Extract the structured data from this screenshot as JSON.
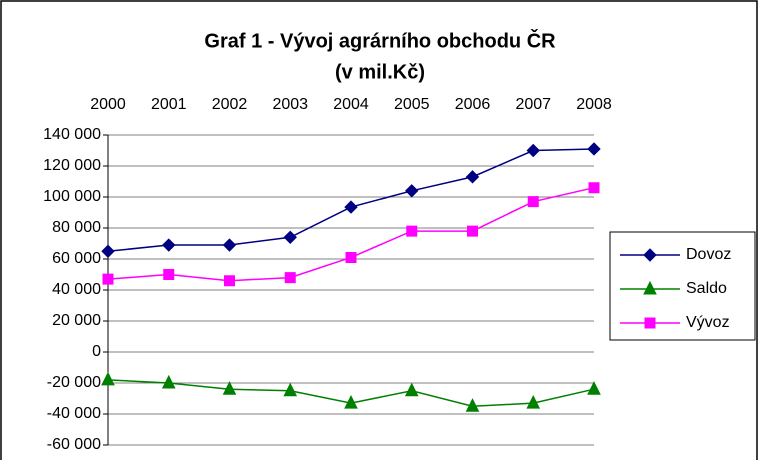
{
  "chart_data": {
    "type": "line",
    "title": "Graf 1 - Vývoj agrárního obchodu ČR",
    "subtitle": "(v mil.Kč)",
    "categories": [
      "2000",
      "2001",
      "2002",
      "2003",
      "2004",
      "2005",
      "2006",
      "2007",
      "2008"
    ],
    "series": [
      {
        "name": "Dovoz",
        "color": "#000080",
        "marker": "diamond",
        "values": [
          65000,
          69000,
          69000,
          74000,
          93500,
          104000,
          113000,
          130000,
          131000
        ]
      },
      {
        "name": "Saldo",
        "color": "#008000",
        "marker": "triangle",
        "values": [
          -18000,
          -20000,
          -24000,
          -25000,
          -33000,
          -25000,
          -35000,
          -33000,
          -24000
        ]
      },
      {
        "name": "Vývoz",
        "color": "#ff00ff",
        "marker": "square",
        "values": [
          47000,
          50000,
          46000,
          48000,
          61000,
          78000,
          78000,
          97000,
          106000
        ]
      }
    ],
    "ylim": [
      -60000,
      140000
    ],
    "yticks": [
      {
        "value": -60000,
        "label": "-60 000"
      },
      {
        "value": -40000,
        "label": "-40 000"
      },
      {
        "value": -20000,
        "label": "-20 000"
      },
      0,
      {
        "value": 20000,
        "label": "20 000"
      },
      {
        "value": 40000,
        "label": "40 000"
      },
      {
        "value": 60000,
        "label": "60 000"
      },
      {
        "value": 80000,
        "label": "80 000"
      },
      {
        "value": 100000,
        "label": "100 000"
      },
      {
        "value": 120000,
        "label": "120 000"
      },
      {
        "value": 140000,
        "label": "140 000"
      }
    ],
    "grid": true,
    "legend": "right"
  }
}
